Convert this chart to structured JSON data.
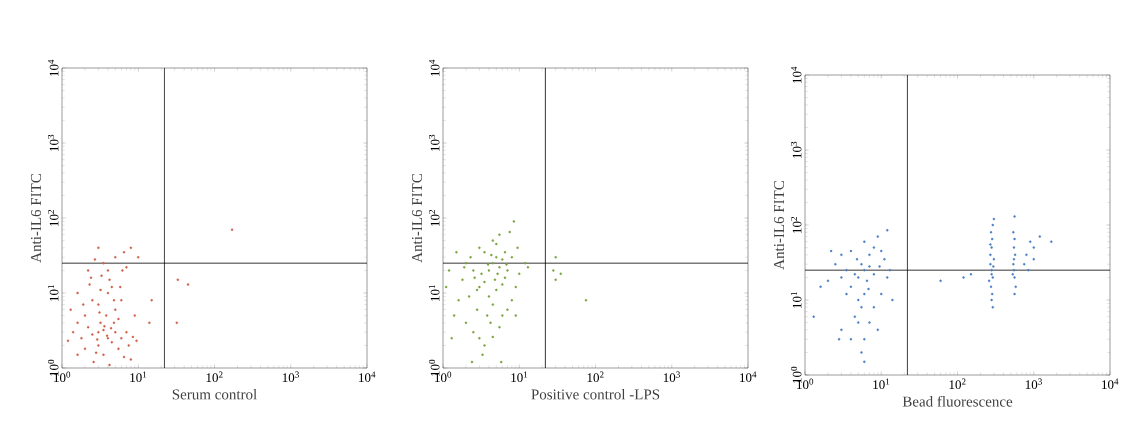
{
  "chart_data": [
    {
      "type": "scatter",
      "xlabel": "Serum control",
      "ylabel": "Anti-IL6 FITC",
      "log": "xy",
      "marker": "circle",
      "grid": false,
      "xlim": [
        1,
        10000
      ],
      "ylim": [
        1,
        10000
      ],
      "xticks": [
        {
          "value": 1,
          "label": "10$^{0}$"
        },
        {
          "value": 10,
          "label": "10$^{1}$"
        },
        {
          "value": 100,
          "label": "10$^{2}$"
        },
        {
          "value": 1000,
          "label": "10$^{3}$"
        },
        {
          "value": 10000,
          "label": "10$^{4}$"
        }
      ],
      "yticks": [
        {
          "value": 1,
          "label": "10$^{0}$"
        },
        {
          "value": 10,
          "label": "10$^{1}$"
        },
        {
          "value": 100,
          "label": "10$^{2}$"
        },
        {
          "value": 1000,
          "label": "10$^{3}$"
        },
        {
          "value": 10000,
          "label": "10$^{4}$"
        }
      ],
      "ref_lines": [
        {
          "axis": "x",
          "value": 22,
          "color": "#000000"
        },
        {
          "axis": "y",
          "value": 25,
          "color": "#000000"
        }
      ],
      "series": [
        {
          "color": "#d0604a",
          "x": [
            3,
            3.5,
            4,
            2.5,
            3,
            4.5,
            3.2,
            2.2,
            5,
            3.8,
            3,
            4,
            4.5,
            3.2,
            2.5,
            2,
            1.6,
            1.3,
            1.8,
            2.8,
            3.5,
            5.5,
            6,
            7,
            5,
            6,
            4.2,
            4,
            3.5,
            5,
            6.5,
            8,
            3,
            2.7,
            2.3,
            1.6,
            1.4,
            2,
            2.6,
            4.2,
            6.5,
            7.5,
            8.5,
            9.5,
            5.5,
            4.8,
            3.3,
            2.2,
            1.9,
            1.2,
            14,
            15,
            33,
            45,
            32,
            170,
            10,
            7,
            3.6,
            4.4,
            2.9,
            3.9,
            4.8,
            3.1,
            1.6,
            8,
            5.8,
            2.4,
            6.2,
            9
          ],
          "values": [
            3,
            3.2,
            2.5,
            2.8,
            2,
            2.2,
            4,
            3.5,
            3,
            5,
            7,
            10,
            12,
            11,
            8,
            5,
            4,
            6,
            2.5,
            1.6,
            1.5,
            1.8,
            2.5,
            3,
            6,
            8,
            15,
            20,
            25,
            30,
            35,
            40,
            40,
            28,
            13,
            10,
            3,
            1.8,
            1.2,
            1.1,
            1.4,
            2,
            2.6,
            2.3,
            4.5,
            8,
            17,
            20,
            7,
            2.3,
            4,
            8,
            15,
            13,
            4,
            70,
            30,
            22,
            3.6,
            3.4,
            2.4,
            2.7,
            4,
            5.5,
            1.5,
            1.3,
            12,
            16,
            20,
            5
          ]
        }
      ]
    },
    {
      "type": "scatter",
      "xlabel": "Positive control -LPS",
      "ylabel": "Anti-IL6 FITC",
      "log": "xy",
      "marker": "circle",
      "grid": false,
      "xlim": [
        1,
        10000
      ],
      "ylim": [
        1,
        10000
      ],
      "xticks": [
        {
          "value": 1,
          "label": "10$^{0}$"
        },
        {
          "value": 10,
          "label": "10$^{1}$"
        },
        {
          "value": 100,
          "label": "10$^{2}$"
        },
        {
          "value": 1000,
          "label": "10$^{3}$"
        },
        {
          "value": 10000,
          "label": "10$^{4}$"
        }
      ],
      "yticks": [
        {
          "value": 1,
          "label": "10$^{0}$"
        },
        {
          "value": 10,
          "label": "10$^{1}$"
        },
        {
          "value": 100,
          "label": "10$^{2}$"
        },
        {
          "value": 1000,
          "label": "10$^{3}$"
        },
        {
          "value": 10000,
          "label": "10$^{4}$"
        }
      ],
      "ref_lines": [
        {
          "axis": "x",
          "value": 22,
          "color": "#000000"
        },
        {
          "axis": "y",
          "value": 25,
          "color": "#000000"
        }
      ],
      "series": [
        {
          "color": "#7aa23c",
          "x": [
            3,
            3.5,
            4,
            4.5,
            5,
            5.5,
            6,
            3.2,
            2.8,
            2.5,
            2,
            1.8,
            4,
            4.5,
            5,
            6,
            6.5,
            7,
            5,
            5.5,
            4.5,
            3.5,
            3,
            2.3,
            1.5,
            1.2,
            1.1,
            1.6,
            2,
            2.5,
            3,
            3.5,
            4.5,
            5.5,
            6,
            7,
            8,
            9,
            10,
            8.5,
            7.5,
            9.5,
            6.5,
            3.8,
            4.2,
            2.8,
            2.2,
            1.4,
            3.3,
            5.8,
            12,
            13,
            28,
            30,
            35,
            30,
            75,
            4.8,
            5.2,
            3.9,
            2.6,
            6.8,
            4.3,
            1.9,
            8,
            2.4,
            9,
            1.3
          ],
          "values": [
            12,
            14,
            20,
            25,
            30,
            22,
            28,
            18,
            11,
            20,
            25,
            15,
            9,
            7,
            11,
            13,
            16,
            20,
            45,
            60,
            50,
            35,
            40,
            30,
            35,
            20,
            12,
            8,
            4,
            3,
            2.5,
            2,
            2.6,
            3.5,
            5,
            6,
            8,
            12,
            18,
            90,
            65,
            40,
            35,
            5,
            4,
            6,
            9,
            5,
            1.5,
            1.2,
            25,
            22,
            20,
            15,
            18,
            30,
            8,
            15,
            18,
            24,
            16,
            24,
            32,
            22,
            30,
            1.2,
            5,
            2.5
          ]
        }
      ]
    },
    {
      "type": "scatter",
      "xlabel": "Bead fluorescence",
      "ylabel": "Anti-IL6 FITC",
      "log": "xy",
      "marker": "circle",
      "grid": false,
      "xlim": [
        1,
        10000
      ],
      "ylim": [
        1,
        10000
      ],
      "xticks": [
        {
          "value": 1,
          "label": "10$^{0}$"
        },
        {
          "value": 10,
          "label": "10$^{1}$"
        },
        {
          "value": 100,
          "label": "10$^{2}$"
        },
        {
          "value": 1000,
          "label": "10$^{3}$"
        },
        {
          "value": 10000,
          "label": "10$^{4}$"
        }
      ],
      "yticks": [
        {
          "value": 1,
          "label": "10$^{0}$"
        },
        {
          "value": 10,
          "label": "10$^{1}$"
        },
        {
          "value": 100,
          "label": "10$^{2}$"
        },
        {
          "value": 1000,
          "label": "10$^{3}$"
        },
        {
          "value": 10000,
          "label": "10$^{4}$"
        }
      ],
      "ref_lines": [
        {
          "axis": "x",
          "value": 22,
          "color": "#000000"
        },
        {
          "axis": "y",
          "value": 25,
          "color": "#000000"
        }
      ],
      "series": [
        {
          "color": "#4a7fc4",
          "x": [
            5,
            6,
            5.5,
            4.5,
            6.5,
            7,
            4,
            3.5,
            3,
            2.5,
            2,
            1.6,
            5,
            5.5,
            6,
            4.5,
            5,
            6,
            5.5,
            4,
            3,
            2.8,
            7,
            8,
            6,
            9,
            10,
            11,
            12,
            13,
            10,
            8,
            7,
            9,
            3,
            4,
            2.2,
            12,
            6,
            14,
            1.3,
            3.5,
            8,
            9.5,
            4.8,
            6.8,
            270,
            280,
            290,
            275,
            285,
            280,
            290,
            270,
            280,
            285,
            275,
            290,
            300,
            260,
            295,
            280,
            270,
            300,
            550,
            560,
            540,
            570,
            550,
            560,
            540,
            580,
            560,
            550,
            530,
            560,
            800,
            900,
            1000,
            1200,
            1700,
            750,
            1000,
            850,
            120,
            150,
            60
          ],
          "values": [
            20,
            25,
            30,
            22,
            18,
            28,
            15,
            25,
            20,
            30,
            18,
            15,
            10,
            8,
            12,
            6,
            5,
            3,
            2,
            3,
            4,
            3,
            40,
            50,
            60,
            70,
            45,
            35,
            20,
            25,
            12,
            8,
            5,
            4,
            40,
            45,
            45,
            85,
            1.5,
            10,
            6,
            12,
            22,
            28,
            35,
            14,
            30,
            25,
            20,
            15,
            12,
            10,
            8,
            40,
            50,
            65,
            80,
            100,
            35,
            18,
            28,
            22,
            55,
            120,
            25,
            20,
            30,
            40,
            50,
            65,
            80,
            15,
            12,
            35,
            22,
            130,
            40,
            60,
            50,
            70,
            60,
            30,
            35,
            25,
            20,
            22,
            18
          ]
        }
      ]
    }
  ]
}
